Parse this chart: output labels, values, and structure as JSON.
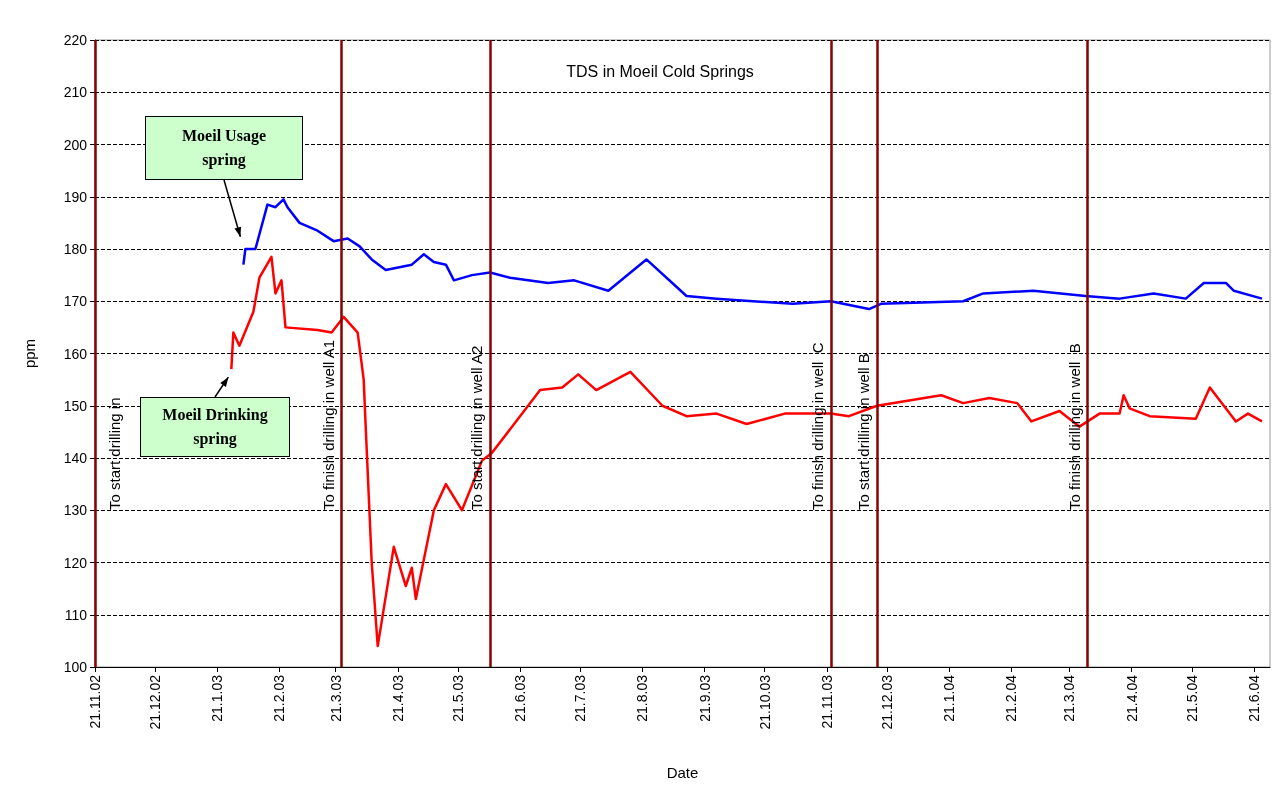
{
  "chart_data": {
    "type": "line",
    "title": "TDS in Moeil Cold Springs",
    "xlabel": "Date",
    "ylabel": "ppm",
    "xlim": [
      "2002-11-21",
      "2004-06-29"
    ],
    "xticks": [
      {
        "value": "2002-11-21",
        "label": "21.11.02"
      },
      {
        "value": "2002-12-21",
        "label": "21.12.02"
      },
      {
        "value": "2003-01-21",
        "label": "21.1.03"
      },
      {
        "value": "2003-02-21",
        "label": "21.2.03"
      },
      {
        "value": "2003-03-21",
        "label": "21.3.03"
      },
      {
        "value": "2003-04-21",
        "label": "21.4.03"
      },
      {
        "value": "2003-05-21",
        "label": "21.5.03"
      },
      {
        "value": "2003-06-21",
        "label": "21.6.03"
      },
      {
        "value": "2003-07-21",
        "label": "21.7.03"
      },
      {
        "value": "2003-08-21",
        "label": "21.8.03"
      },
      {
        "value": "2003-09-21",
        "label": "21.9.03"
      },
      {
        "value": "2003-10-21",
        "label": "21.10.03"
      },
      {
        "value": "2003-11-21",
        "label": "21.11.03"
      },
      {
        "value": "2003-12-21",
        "label": "21.12.03"
      },
      {
        "value": "2004-01-21",
        "label": "21.1.04"
      },
      {
        "value": "2004-02-21",
        "label": "21.2.04"
      },
      {
        "value": "2004-03-21",
        "label": "21.3.04"
      },
      {
        "value": "2004-04-21",
        "label": "21.4.04"
      },
      {
        "value": "2004-05-21",
        "label": "21.5.04"
      },
      {
        "value": "2004-06-21",
        "label": "21.6.04"
      }
    ],
    "ylim": [
      100,
      220
    ],
    "yticks": [
      100,
      110,
      120,
      130,
      140,
      150,
      160,
      170,
      180,
      190,
      200,
      210,
      220
    ],
    "grid": "y",
    "legend": false,
    "marker": "none",
    "line_style": "solid",
    "series": [
      {
        "name": "Moeil Usage spring",
        "color": "#0000ff",
        "x": [
          "2003-02-03",
          "2003-02-04",
          "2003-02-09",
          "2003-02-15",
          "2003-02-19",
          "2003-02-23",
          "2003-02-25",
          "2003-03-03",
          "2003-03-12",
          "2003-03-20",
          "2003-03-27",
          "2003-04-02",
          "2003-04-08",
          "2003-04-15",
          "2003-04-28",
          "2003-05-04",
          "2003-05-09",
          "2003-05-15",
          "2003-05-19",
          "2003-05-28",
          "2003-06-06",
          "2003-06-16",
          "2003-07-05",
          "2003-07-18",
          "2003-08-04",
          "2003-08-23",
          "2003-09-12",
          "2003-09-27",
          "2003-11-04",
          "2003-11-23",
          "2003-12-12",
          "2003-12-18",
          "2004-01-28",
          "2004-02-07",
          "2004-03-03",
          "2004-03-29",
          "2004-04-15",
          "2004-05-02",
          "2004-05-18",
          "2004-05-27",
          "2004-06-07",
          "2004-06-11",
          "2004-06-25"
        ],
        "values": [
          177,
          180,
          180,
          188.5,
          188,
          189.5,
          188,
          185,
          183.5,
          181.5,
          182,
          180.5,
          178,
          176,
          177,
          179,
          177.5,
          177,
          174,
          175,
          175.5,
          174.5,
          173.5,
          174,
          172,
          178,
          171,
          170.5,
          169.5,
          170,
          168.5,
          169.5,
          170,
          171.5,
          172,
          171,
          170.5,
          171.5,
          170.5,
          173.5,
          173.5,
          172,
          170.5
        ]
      },
      {
        "name": "Moeil Drinking spring",
        "color": "#ff0000",
        "x": [
          "2003-01-28",
          "2003-01-29",
          "2003-02-01",
          "2003-02-08",
          "2003-02-11",
          "2003-02-17",
          "2003-02-19",
          "2003-02-22",
          "2003-02-24",
          "2003-03-12",
          "2003-03-19",
          "2003-03-25",
          "2003-04-01",
          "2003-04-04",
          "2003-04-05",
          "2003-04-08",
          "2003-04-11",
          "2003-04-19",
          "2003-04-25",
          "2003-04-28",
          "2003-04-30",
          "2003-05-09",
          "2003-05-15",
          "2003-05-23",
          "2003-06-02",
          "2003-06-07",
          "2003-07-01",
          "2003-07-12",
          "2003-07-20",
          "2003-07-29",
          "2003-08-15",
          "2003-08-31",
          "2003-09-12",
          "2003-09-27",
          "2003-10-12",
          "2003-10-31",
          "2003-11-23",
          "2003-12-02",
          "2003-12-16",
          "2004-01-17",
          "2004-01-28",
          "2004-02-10",
          "2004-02-24",
          "2004-03-02",
          "2004-03-16",
          "2004-03-26",
          "2004-04-05",
          "2004-04-15",
          "2004-04-17",
          "2004-04-20",
          "2004-04-30",
          "2004-05-23",
          "2004-05-30",
          "2004-06-12",
          "2004-06-18",
          "2004-06-25"
        ],
        "values": [
          157,
          164,
          161.5,
          168,
          174.5,
          178.5,
          171.5,
          174,
          165,
          164.5,
          164,
          167,
          164,
          155,
          146,
          120,
          104,
          123,
          115.5,
          119,
          113,
          130,
          135,
          130,
          139.5,
          141,
          153,
          153.5,
          156,
          153,
          156.5,
          150,
          148,
          148.5,
          146.5,
          148.5,
          148.5,
          148,
          150,
          152,
          150.5,
          151.5,
          150.5,
          147,
          149,
          146,
          148.5,
          148.5,
          152,
          149.5,
          148,
          147.5,
          153.5,
          147,
          148.5,
          147
        ]
      }
    ],
    "ref_lines": [
      {
        "axis": "x",
        "value": "2002-11-21",
        "label": "To start drilling in",
        "color": "#8b0000"
      },
      {
        "axis": "x",
        "value": "2003-03-24",
        "label": "To finish drilling in well A1",
        "color": "#8b0000"
      },
      {
        "axis": "x",
        "value": "2003-06-06",
        "label": "To start drilling in well A2",
        "color": "#8b0000"
      },
      {
        "axis": "x",
        "value": "2003-11-23",
        "label": "To finish drilling in well  C",
        "color": "#8b0000"
      },
      {
        "axis": "x",
        "value": "2003-12-16",
        "label": "To start drilling in well B",
        "color": "#8b0000"
      },
      {
        "axis": "x",
        "value": "2004-03-30",
        "label": "To finish drilling in well  B",
        "color": "#8b0000"
      }
    ]
  }
}
